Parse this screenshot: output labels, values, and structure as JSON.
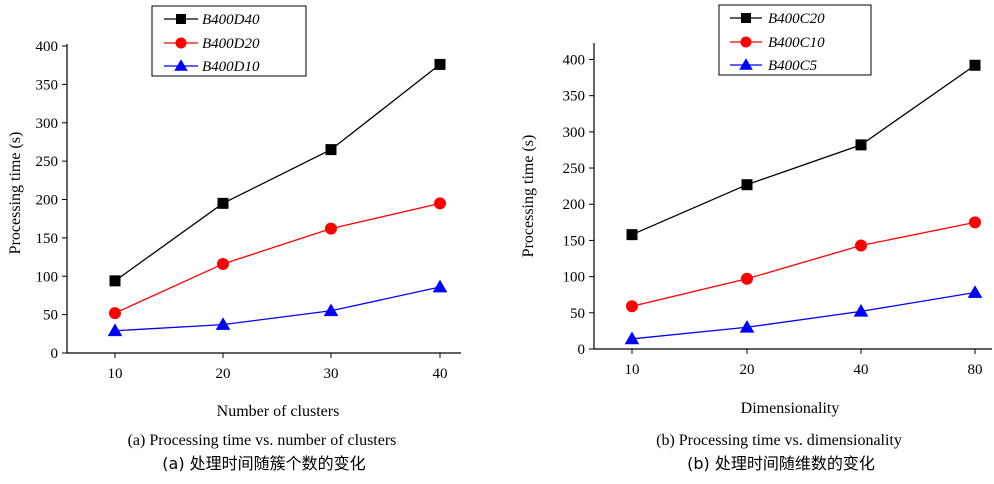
{
  "colors": {
    "black": "#000000",
    "red": "#ff0000",
    "blue": "#0000ff"
  },
  "chart_data": [
    {
      "type": "line",
      "categories": [
        "10",
        "20",
        "30",
        "40"
      ],
      "series": [
        {
          "name": "B400D40",
          "marker": "square",
          "color": "#000000",
          "values": [
            94,
            195,
            265,
            376
          ]
        },
        {
          "name": "B400D20",
          "marker": "circle",
          "color": "#ff0000",
          "values": [
            52,
            116,
            162,
            195
          ]
        },
        {
          "name": "B400D10",
          "marker": "triangle",
          "color": "#0000ff",
          "values": [
            29,
            37,
            55,
            86
          ]
        }
      ],
      "xlabel": "Number of clusters",
      "ylabel": "Processing time (s)",
      "ylim": [
        0,
        400
      ],
      "yticks": [
        "0",
        "50",
        "100",
        "150",
        "200",
        "250",
        "300",
        "350",
        "400"
      ],
      "legend": "top-left",
      "grid": false,
      "caption_en": "(a) Processing time vs. number of clusters",
      "caption_cn": "(a)  处理时间随簇个数的变化"
    },
    {
      "type": "line",
      "categories": [
        "10",
        "20",
        "40",
        "80"
      ],
      "series": [
        {
          "name": "B400C20",
          "marker": "square",
          "color": "#000000",
          "values": [
            158,
            227,
            282,
            392
          ]
        },
        {
          "name": "B400C10",
          "marker": "circle",
          "color": "#ff0000",
          "values": [
            59,
            97,
            143,
            175
          ]
        },
        {
          "name": "B400C5",
          "marker": "triangle",
          "color": "#0000ff",
          "values": [
            14,
            30,
            52,
            78
          ]
        }
      ],
      "xlabel": "Dimensionality",
      "ylabel": "Processing time (s)",
      "ylim": [
        0,
        420
      ],
      "yticks": [
        "0",
        "50",
        "100",
        "150",
        "200",
        "250",
        "300",
        "350",
        "400"
      ],
      "legend": "top-left",
      "grid": false,
      "caption_en": "(b) Processing time vs. dimensionality",
      "caption_cn": "(b)  处理时间随维数的变化"
    }
  ]
}
